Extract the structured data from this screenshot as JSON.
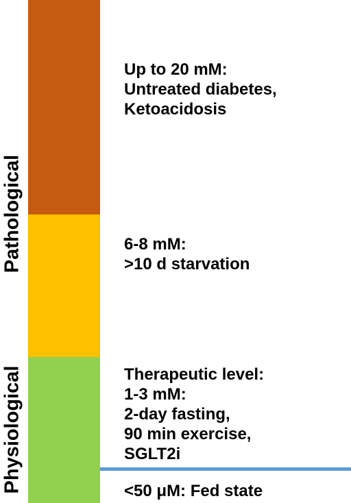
{
  "colors": {
    "pathological_high": "#C55A11",
    "pathological_moderate": "#FFC000",
    "physiological": "#92D050",
    "threshold_line": "#5B9BD5"
  },
  "side_labels": {
    "pathological": "Pathological",
    "physiological": "Physiological"
  },
  "levels": {
    "high": "Up to 20 mM:\nUntreated diabetes,\nKetoacidosis",
    "starvation": "6-8 mM:\n>10 d starvation",
    "therapeutic": "Therapeutic level:\n1-3 mM:\n2-day fasting,\n90 min exercise,\nSGLT2i",
    "fed": "<50 μM: Fed state"
  }
}
